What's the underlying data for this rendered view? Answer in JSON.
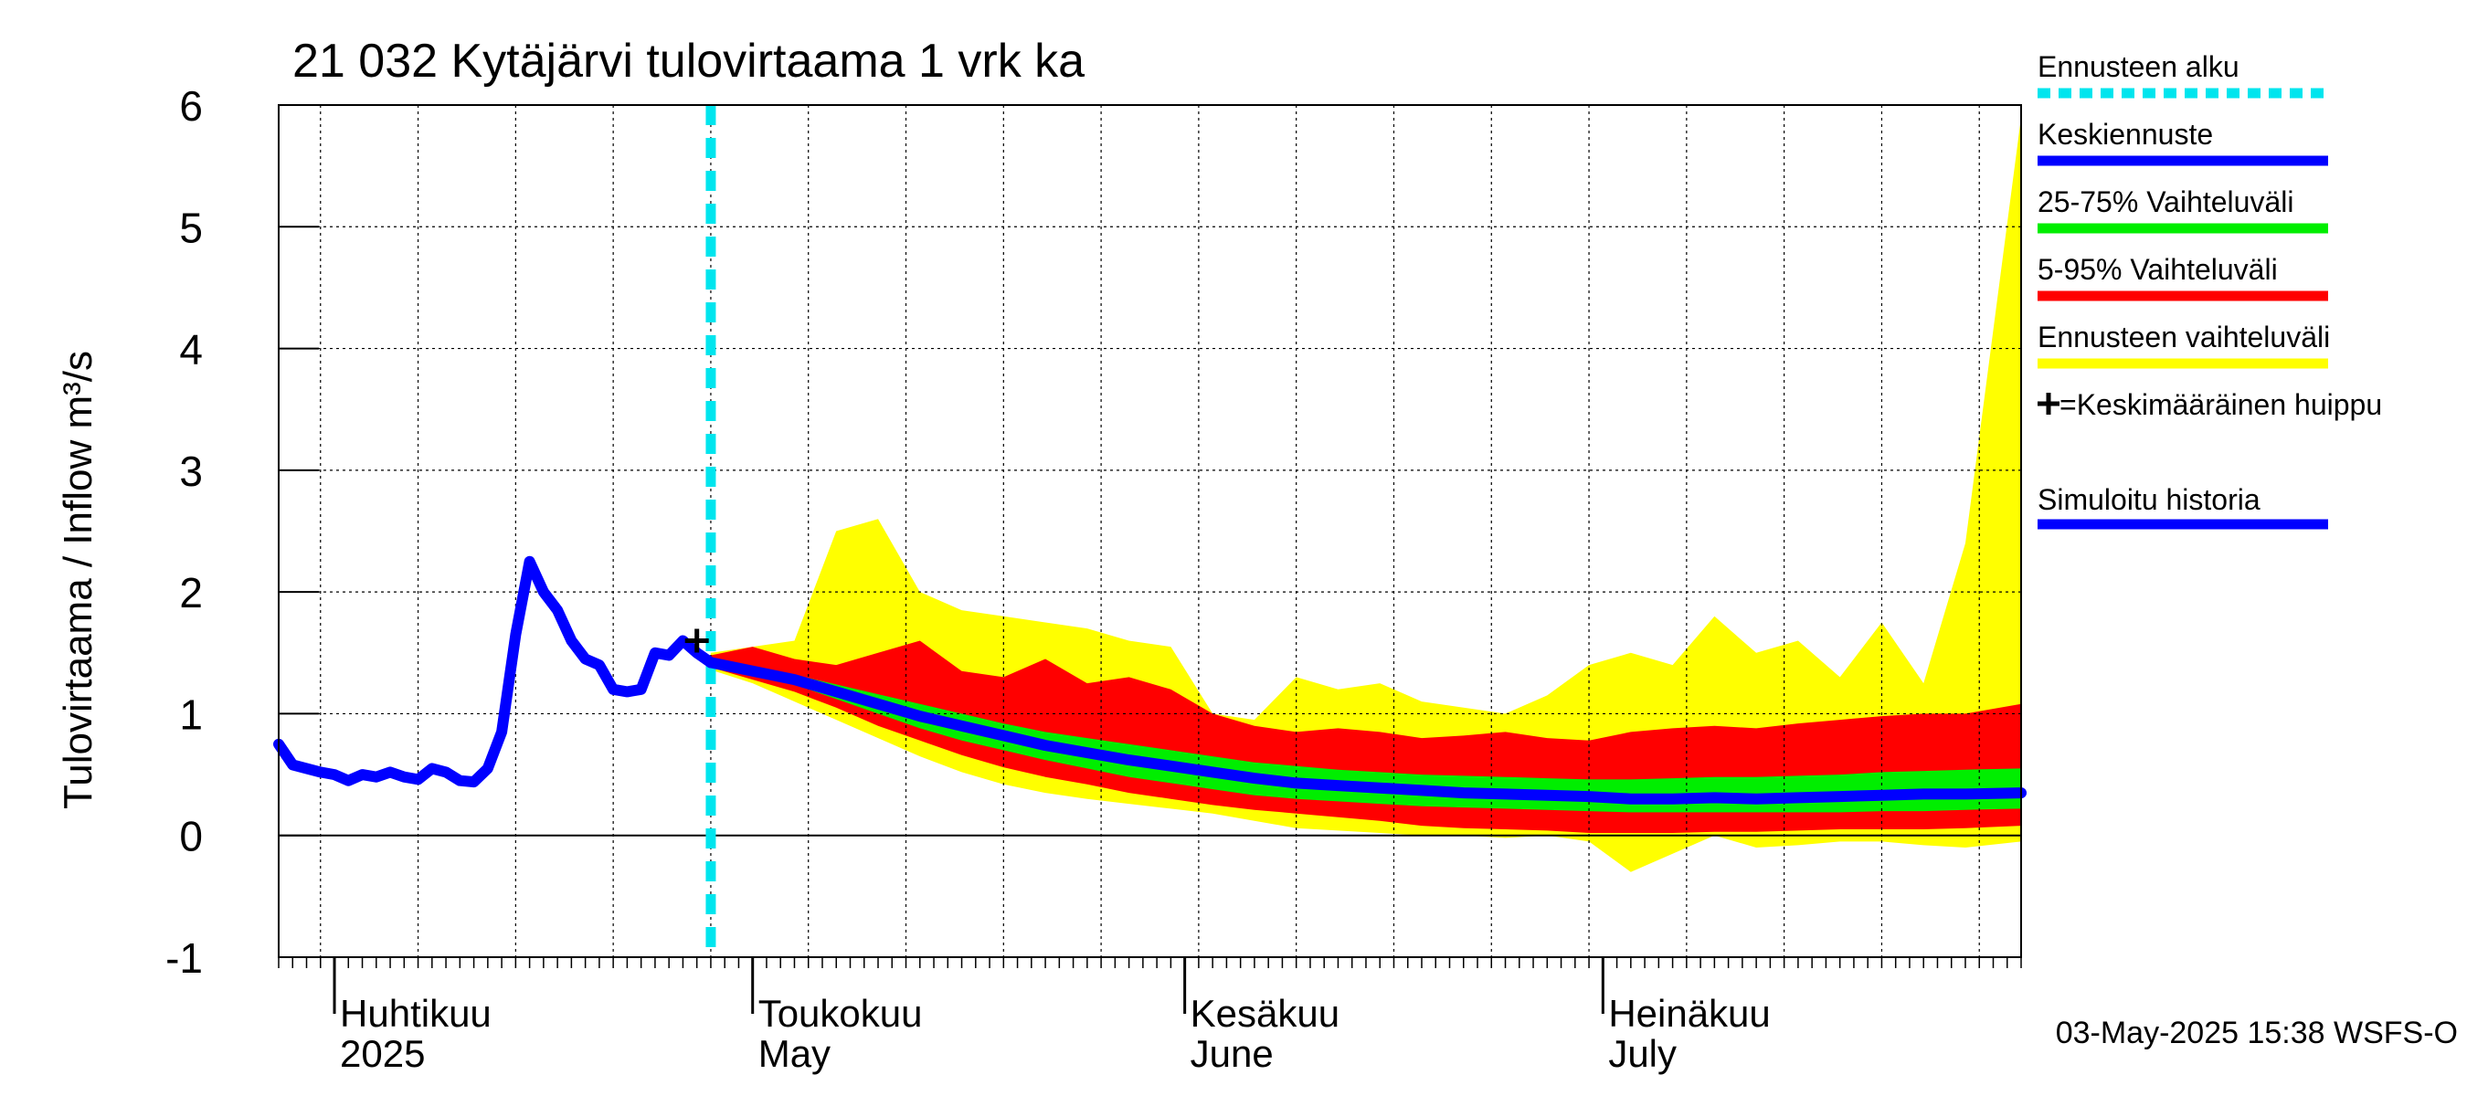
{
  "chart_data": {
    "type": "area",
    "title": "21 032 Kytäjärvi tulovirtaama 1 vrk ka",
    "ylabel": "Tulovirtaama / Inflow    m³/s",
    "xlabel": "",
    "ylim": [
      -1,
      6
    ],
    "xlim": [
      "2025-03-28",
      "2025-07-31"
    ],
    "y_ticks": [
      "-1",
      "0",
      "1",
      "2",
      "3",
      "4",
      "5",
      "6"
    ],
    "grid": true,
    "legend_position": "right",
    "month_labels": [
      {
        "fi": "Huhtikuu",
        "en": "2025"
      },
      {
        "fi": "Toukokuu",
        "en": "May"
      },
      {
        "fi": "Kesäkuu",
        "en": "June"
      },
      {
        "fi": "Heinäkuu",
        "en": "July"
      }
    ],
    "footer": "03-May-2025 15:38 WSFS-O",
    "forecast_start": "2025-04-28",
    "mean_peak": {
      "x": "2025-04-27",
      "y": 1.6
    },
    "legend": [
      {
        "label": "Ennusteen alku",
        "color": "#00e5ee",
        "style": "dashed"
      },
      {
        "label": "Keskiennuste",
        "color": "#0000ff",
        "style": "solid"
      },
      {
        "label": "25-75% Vaihteluväli",
        "color": "#00ee00",
        "style": "solid"
      },
      {
        "label": "5-95% Vaihteluväli",
        "color": "#ff0000",
        "style": "solid"
      },
      {
        "label": "Ennusteen vaihteluväli",
        "color": "#ffff00",
        "style": "solid"
      },
      {
        "label": "=Keskimääräinen huippu",
        "symbol": "plus",
        "color": "#000000"
      },
      {
        "label": "Simuloitu historia",
        "color": "#0000ff",
        "style": "solid"
      }
    ],
    "series": [
      {
        "name": "Simuloitu historia",
        "color": "#0000ff",
        "x": [
          "2025-03-28",
          "2025-03-29",
          "2025-03-30",
          "2025-03-31",
          "2025-04-01",
          "2025-04-02",
          "2025-04-03",
          "2025-04-04",
          "2025-04-05",
          "2025-04-06",
          "2025-04-07",
          "2025-04-08",
          "2025-04-09",
          "2025-04-10",
          "2025-04-11",
          "2025-04-12",
          "2025-04-13",
          "2025-04-14",
          "2025-04-15",
          "2025-04-16",
          "2025-04-17",
          "2025-04-18",
          "2025-04-19",
          "2025-04-20",
          "2025-04-21",
          "2025-04-22",
          "2025-04-23",
          "2025-04-24",
          "2025-04-25",
          "2025-04-26",
          "2025-04-27",
          "2025-04-28"
        ],
        "values": [
          0.75,
          0.58,
          0.55,
          0.52,
          0.5,
          0.45,
          0.5,
          0.48,
          0.52,
          0.48,
          0.46,
          0.55,
          0.52,
          0.45,
          0.44,
          0.55,
          0.85,
          1.65,
          2.25,
          2.0,
          1.85,
          1.6,
          1.45,
          1.4,
          1.2,
          1.18,
          1.2,
          1.5,
          1.48,
          1.6,
          1.5,
          1.42
        ]
      },
      {
        "name": "Keskiennuste",
        "color": "#0000ff",
        "x": [
          "2025-04-28",
          "2025-05-01",
          "2025-05-04",
          "2025-05-07",
          "2025-05-10",
          "2025-05-13",
          "2025-05-16",
          "2025-05-19",
          "2025-05-22",
          "2025-05-25",
          "2025-05-28",
          "2025-05-31",
          "2025-06-03",
          "2025-06-06",
          "2025-06-09",
          "2025-06-12",
          "2025-06-15",
          "2025-06-18",
          "2025-06-21",
          "2025-06-24",
          "2025-06-27",
          "2025-06-30",
          "2025-07-03",
          "2025-07-06",
          "2025-07-09",
          "2025-07-12",
          "2025-07-15",
          "2025-07-18",
          "2025-07-21",
          "2025-07-24",
          "2025-07-27",
          "2025-07-31"
        ],
        "values": [
          1.42,
          1.35,
          1.28,
          1.18,
          1.08,
          0.98,
          0.9,
          0.82,
          0.74,
          0.68,
          0.62,
          0.57,
          0.52,
          0.47,
          0.43,
          0.41,
          0.39,
          0.37,
          0.35,
          0.34,
          0.33,
          0.32,
          0.3,
          0.3,
          0.31,
          0.3,
          0.31,
          0.32,
          0.33,
          0.34,
          0.34,
          0.35
        ]
      },
      {
        "name": "25-75% Vaihteluväli",
        "color": "#00ee00",
        "x": [
          "2025-04-28",
          "2025-05-01",
          "2025-05-04",
          "2025-05-07",
          "2025-05-10",
          "2025-05-13",
          "2025-05-16",
          "2025-05-19",
          "2025-05-22",
          "2025-05-25",
          "2025-05-28",
          "2025-05-31",
          "2025-06-03",
          "2025-06-06",
          "2025-06-09",
          "2025-06-12",
          "2025-06-15",
          "2025-06-18",
          "2025-06-21",
          "2025-06-24",
          "2025-06-27",
          "2025-06-30",
          "2025-07-03",
          "2025-07-06",
          "2025-07-09",
          "2025-07-12",
          "2025-07-15",
          "2025-07-18",
          "2025-07-21",
          "2025-07-24",
          "2025-07-27",
          "2025-07-31"
        ],
        "lower": [
          1.4,
          1.32,
          1.24,
          1.12,
          1.0,
          0.88,
          0.78,
          0.7,
          0.62,
          0.55,
          0.48,
          0.43,
          0.38,
          0.33,
          0.3,
          0.28,
          0.26,
          0.24,
          0.23,
          0.22,
          0.21,
          0.2,
          0.19,
          0.19,
          0.19,
          0.19,
          0.19,
          0.19,
          0.2,
          0.2,
          0.21,
          0.22
        ],
        "upper": [
          1.45,
          1.38,
          1.32,
          1.24,
          1.16,
          1.08,
          1.0,
          0.92,
          0.85,
          0.8,
          0.75,
          0.7,
          0.65,
          0.6,
          0.57,
          0.54,
          0.52,
          0.5,
          0.49,
          0.48,
          0.47,
          0.46,
          0.46,
          0.47,
          0.48,
          0.48,
          0.49,
          0.5,
          0.52,
          0.53,
          0.54,
          0.55
        ]
      },
      {
        "name": "5-95% Vaihteluväli",
        "color": "#ff0000",
        "x": [
          "2025-04-28",
          "2025-05-01",
          "2025-05-04",
          "2025-05-07",
          "2025-05-10",
          "2025-05-13",
          "2025-05-16",
          "2025-05-19",
          "2025-05-22",
          "2025-05-25",
          "2025-05-28",
          "2025-05-31",
          "2025-06-03",
          "2025-06-06",
          "2025-06-09",
          "2025-06-12",
          "2025-06-15",
          "2025-06-18",
          "2025-06-21",
          "2025-06-24",
          "2025-06-27",
          "2025-06-30",
          "2025-07-03",
          "2025-07-06",
          "2025-07-09",
          "2025-07-12",
          "2025-07-15",
          "2025-07-18",
          "2025-07-21",
          "2025-07-24",
          "2025-07-27",
          "2025-07-31"
        ],
        "lower": [
          1.38,
          1.28,
          1.18,
          1.05,
          0.9,
          0.78,
          0.66,
          0.56,
          0.48,
          0.42,
          0.35,
          0.3,
          0.25,
          0.21,
          0.18,
          0.15,
          0.12,
          0.08,
          0.06,
          0.05,
          0.04,
          0.02,
          0.02,
          0.02,
          0.03,
          0.03,
          0.04,
          0.05,
          0.05,
          0.05,
          0.06,
          0.08
        ],
        "upper": [
          1.48,
          1.55,
          1.45,
          1.4,
          1.5,
          1.6,
          1.35,
          1.3,
          1.45,
          1.25,
          1.3,
          1.2,
          1.0,
          0.9,
          0.85,
          0.88,
          0.85,
          0.8,
          0.82,
          0.85,
          0.8,
          0.78,
          0.85,
          0.88,
          0.9,
          0.88,
          0.92,
          0.95,
          0.98,
          1.0,
          1.0,
          1.08
        ]
      },
      {
        "name": "Ennusteen vaihteluväli",
        "color": "#ffff00",
        "x": [
          "2025-04-28",
          "2025-05-01",
          "2025-05-04",
          "2025-05-07",
          "2025-05-10",
          "2025-05-13",
          "2025-05-16",
          "2025-05-19",
          "2025-05-22",
          "2025-05-25",
          "2025-05-28",
          "2025-05-31",
          "2025-06-03",
          "2025-06-06",
          "2025-06-09",
          "2025-06-12",
          "2025-06-15",
          "2025-06-18",
          "2025-06-21",
          "2025-06-24",
          "2025-06-27",
          "2025-06-30",
          "2025-07-03",
          "2025-07-06",
          "2025-07-09",
          "2025-07-12",
          "2025-07-15",
          "2025-07-18",
          "2025-07-21",
          "2025-07-24",
          "2025-07-27",
          "2025-07-31"
        ],
        "lower": [
          1.36,
          1.25,
          1.1,
          0.95,
          0.8,
          0.65,
          0.52,
          0.42,
          0.35,
          0.3,
          0.26,
          0.22,
          0.18,
          0.12,
          0.06,
          0.04,
          0.02,
          0.0,
          0.0,
          -0.02,
          0.0,
          -0.05,
          -0.3,
          -0.15,
          0.0,
          -0.1,
          -0.08,
          -0.05,
          -0.05,
          -0.08,
          -0.1,
          -0.05
        ],
        "upper": [
          1.5,
          1.55,
          1.6,
          2.5,
          2.6,
          2.0,
          1.85,
          1.8,
          1.75,
          1.7,
          1.6,
          1.55,
          1.0,
          0.95,
          1.3,
          1.2,
          1.25,
          1.1,
          1.05,
          1.0,
          1.15,
          1.4,
          1.5,
          1.4,
          1.8,
          1.5,
          1.6,
          1.3,
          1.75,
          1.25,
          2.4,
          5.9
        ]
      }
    ]
  }
}
